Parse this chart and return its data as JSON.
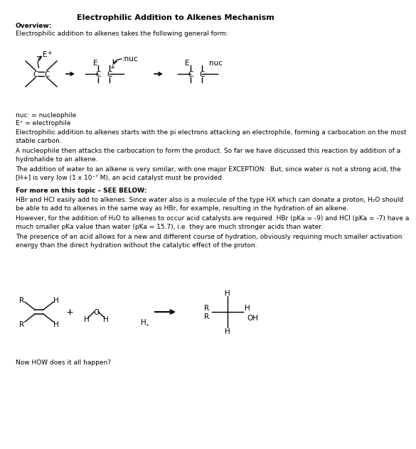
{
  "title": "Electrophilic Addition to Alkenes Mechanism",
  "overview_label": "Overview:",
  "overview_text": "Electrophilic addition to alkenes takes the following general form:",
  "para1": "Electrophilic addition to alkenes starts with the pi electrons attacking an electrophile, forming a carbocation on the most\nstable carbon.",
  "para2": "A nucleophile then attacks the carbocation to form the product. So far we have discussed this reaction by addition of a\nhydrohalide to an alkene.",
  "para3": "The addition of water to an alkene is very similar, with one major EXCEPTION:  But, since water is not a strong acid, the\n[H+] is very low (1 x 10⁻⁷ M), an acid catalyst must be provided.",
  "para4_bold": "For more on this topic – SEE BELOW:",
  "para5": "HBr and HCl easily add to alkenes. Since water also is a molecule of the type HX which can donate a proton, H₂O should\nbe able to add to alkenes in the same way as HBr, for example, resulting in the hydration of an alkene.",
  "para6": "However, for the addition of H₂O to alkenes to occur acid catalysts are required. HBr (pKa = -9) and HCl (pKa = -7) have a\nmuch smaller pKa value than water (pKa = 15.7), i.e. they are much stronger acids than water.",
  "para7": "The presence of an acid allows for a new and different course of hydration, obviously requiring much smaller activation\nenergy than the direct hydration without the catalytic effect of the proton.",
  "footer": "Now HOW does it all happen?",
  "bg_color": "#ffffff",
  "text_color": "#000000",
  "font_size": 6.5,
  "title_font_size": 8.0
}
